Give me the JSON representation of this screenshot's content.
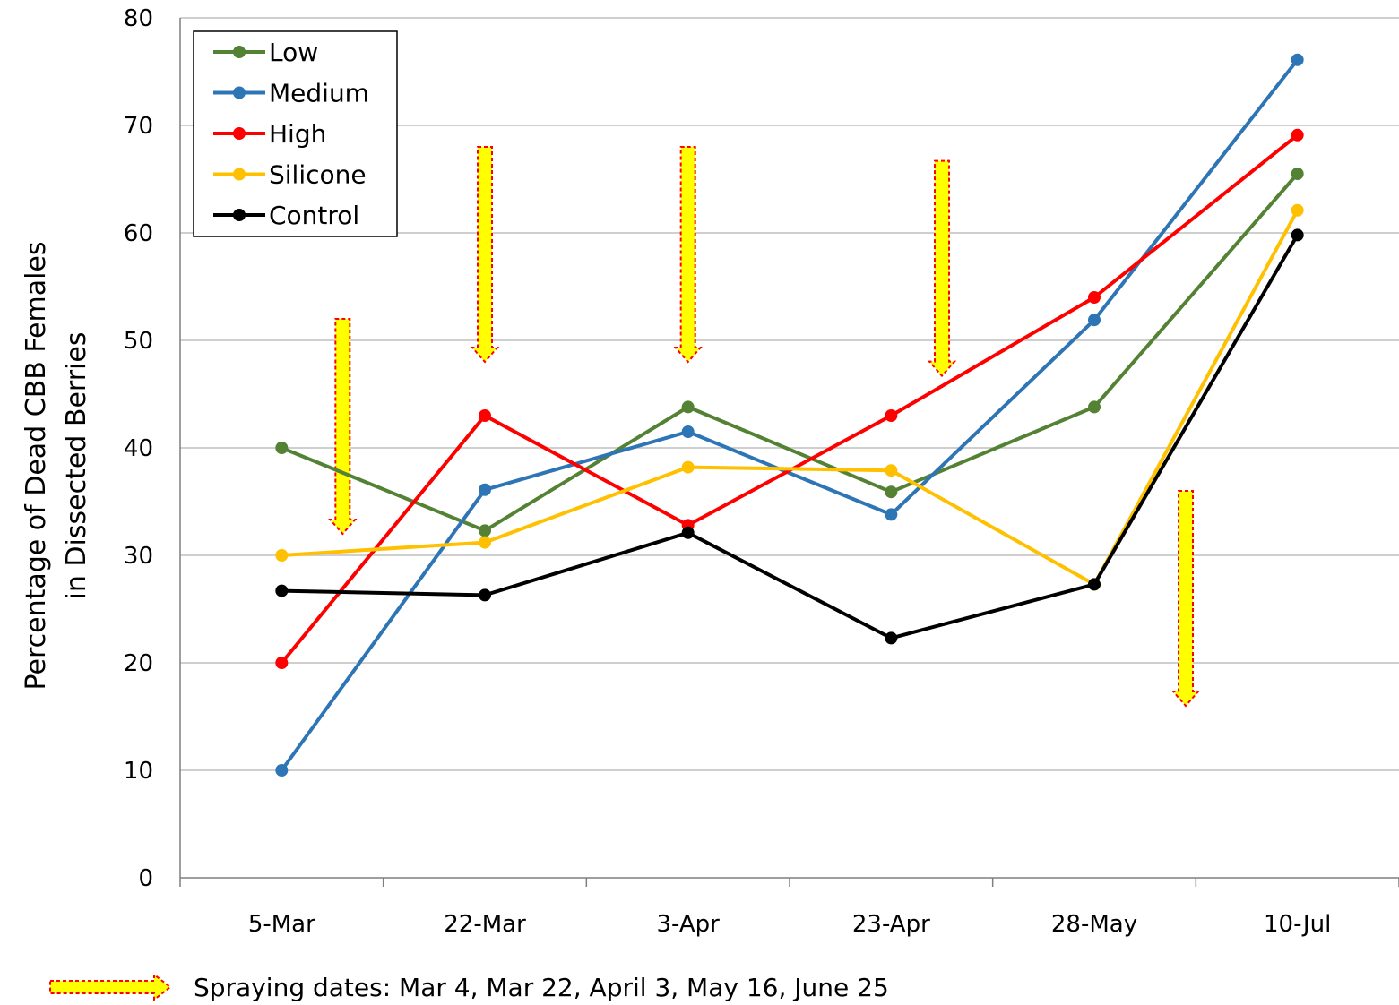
{
  "chart_data": {
    "type": "line",
    "title": "",
    "xlabel": "",
    "ylabel_lines": [
      "Percentage of Dead CBB Females",
      "in Dissected Berries"
    ],
    "categories": [
      "5-Mar",
      "22-Mar",
      "3-Apr",
      "23-Apr",
      "28-May",
      "10-Jul"
    ],
    "ylim": [
      0,
      80
    ],
    "yticks": [
      0,
      10,
      20,
      30,
      40,
      50,
      60,
      70,
      80
    ],
    "grid": true,
    "legend_position": "top-left",
    "series": [
      {
        "name": "Low",
        "color": "#548235",
        "values": [
          40,
          32.3,
          43.8,
          35.9,
          43.8,
          65.5
        ]
      },
      {
        "name": "Medium",
        "color": "#2E75B6",
        "values": [
          10,
          36.1,
          41.5,
          33.8,
          51.9,
          76.1
        ]
      },
      {
        "name": "High",
        "color": "#FF0000",
        "values": [
          20,
          43,
          32.8,
          43,
          54,
          69.1
        ]
      },
      {
        "name": "Silicone",
        "color": "#FFC000",
        "values": [
          30,
          31.2,
          38.2,
          37.9,
          27.3,
          62.1
        ]
      },
      {
        "name": "Control",
        "color": "#000000",
        "values": [
          26.7,
          26.3,
          32.1,
          22.3,
          27.3,
          59.8
        ]
      }
    ],
    "annotations": {
      "spray_arrows": [
        {
          "x_position": 0.3,
          "value_top": 52,
          "value_bottom": 32
        },
        {
          "x_position": 1.0,
          "value_top": 68,
          "value_bottom": 48
        },
        {
          "x_position": 2.0,
          "value_top": 68,
          "value_bottom": 48
        },
        {
          "x_position": 3.25,
          "value_top": 66.7,
          "value_bottom": 46.7
        },
        {
          "x_position": 4.45,
          "value_top": 36,
          "value_bottom": 16
        }
      ],
      "arrow_fill": "#FFFF00",
      "arrow_border": "#FF0000"
    },
    "footnote": "Spraying dates: Mar 4, Mar 22, April 3, May 16, June 25"
  }
}
